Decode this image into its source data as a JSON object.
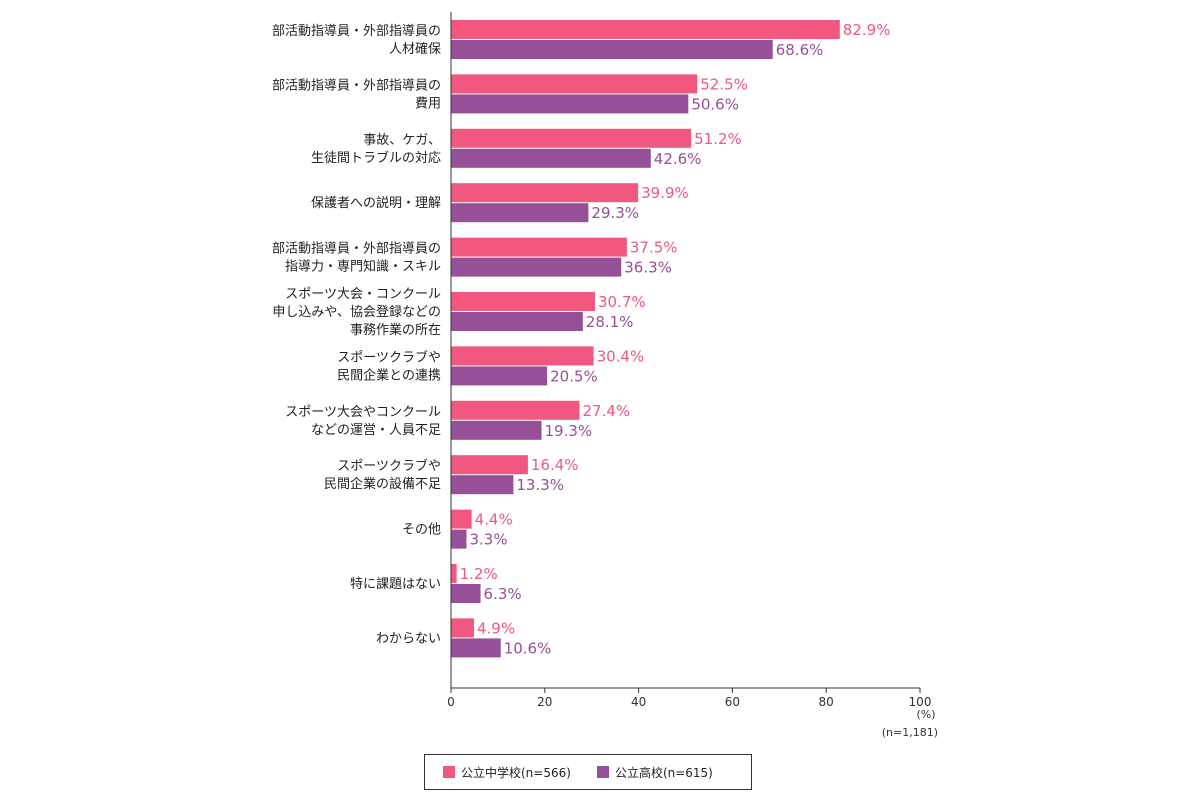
{
  "chart_data": {
    "type": "bar",
    "orientation": "horizontal",
    "categories": [
      [
        "部活動指導員・外部指導員の",
        "人材確保"
      ],
      [
        "部活動指導員・外部指導員の",
        "費用"
      ],
      [
        "事故、ケガ、",
        "生徒間トラブルの対応"
      ],
      [
        "保護者への説明・理解"
      ],
      [
        "部活動指導員・外部指導員の",
        "指導力・専門知識・スキル"
      ],
      [
        "スポーツ大会・コンクール",
        "申し込みや、協会登録などの",
        "事務作業の所在"
      ],
      [
        "スポーツクラブや",
        "民間企業との連携"
      ],
      [
        "スポーツ大会やコンクール",
        "などの運営・人員不足"
      ],
      [
        "スポーツクラブや",
        "民間企業の設備不足"
      ],
      [
        "その他"
      ],
      [
        "特に課題はない"
      ],
      [
        "わからない"
      ]
    ],
    "series": [
      {
        "name": "公立中学校(n=566)",
        "color": "#f2577f",
        "values": [
          82.9,
          52.5,
          51.2,
          39.9,
          37.5,
          30.7,
          30.4,
          27.4,
          16.4,
          4.4,
          1.2,
          4.9
        ],
        "labels": [
          "82.9%",
          "52.5%",
          "51.2%",
          "39.9%",
          "37.5%",
          "30.7%",
          "30.4%",
          "27.4%",
          "16.4%",
          "4.4%",
          "1.2%",
          "4.9%"
        ]
      },
      {
        "name": "公立高校(n=615)",
        "color": "#965097",
        "values": [
          68.6,
          50.6,
          42.6,
          29.3,
          36.3,
          28.1,
          20.5,
          19.3,
          13.3,
          3.3,
          6.3,
          10.6
        ],
        "labels": [
          "68.6%",
          "50.6%",
          "42.6%",
          "29.3%",
          "36.3%",
          "28.1%",
          "20.5%",
          "19.3%",
          "13.3%",
          "3.3%",
          "6.3%",
          "10.6%"
        ]
      }
    ],
    "xlim": [
      0,
      100
    ],
    "xticks": [
      "0",
      "20",
      "40",
      "60",
      "80",
      "100"
    ],
    "xunit": "(%)",
    "sample_note": "(n=1,181)",
    "grid": false,
    "legend_position": "bottom"
  }
}
